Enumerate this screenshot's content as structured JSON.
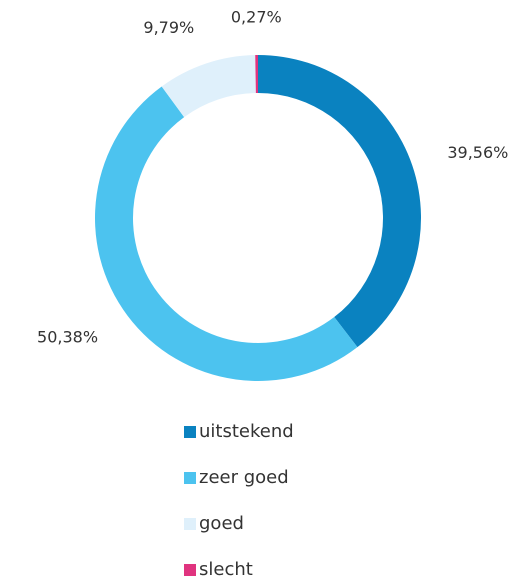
{
  "chart_data": {
    "type": "pie",
    "categories": [
      "uitstekend",
      "zeer goed",
      "goed",
      "slecht"
    ],
    "values": [
      39.56,
      50.38,
      9.79,
      0.27
    ],
    "value_labels": [
      "39,56%",
      "50,38%",
      "9,79%",
      "0,27%"
    ],
    "colors": [
      "#0a82c0",
      "#4cc3ef",
      "#dff0fb",
      "#e0337f"
    ]
  }
}
